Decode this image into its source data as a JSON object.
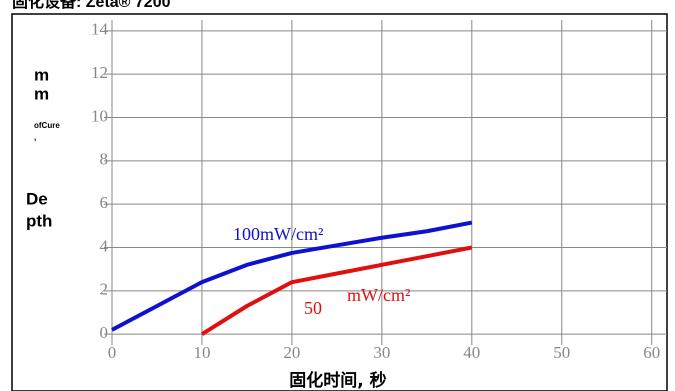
{
  "chart_data": {
    "type": "line",
    "title": "固化设备: Zeta® 7200",
    "y_label_parts": [
      "m",
      "m",
      "ofCure",
      ",",
      "De",
      "pth"
    ],
    "x_label": "固化时间, 秒",
    "x": [
      0,
      5,
      10,
      15,
      20,
      25,
      30,
      35,
      40
    ],
    "series": [
      {
        "name": "100mW/cm²",
        "color": "#1010d0",
        "values": [
          0.2,
          1.3,
          2.4,
          3.2,
          3.75,
          4.1,
          4.45,
          4.75,
          5.15
        ]
      },
      {
        "name": "50",
        "color": "#e01010",
        "values": [
          null,
          null,
          0,
          1.3,
          2.4,
          2.8,
          3.2,
          3.6,
          4.0
        ]
      }
    ],
    "annotations": [
      "mW/cm²"
    ],
    "xlim": [
      0,
      61.7
    ],
    "xticks": [
      0,
      10,
      20,
      30,
      40,
      50,
      60
    ],
    "ylim": [
      -0.5,
      14.5
    ],
    "yticks": [
      0,
      2,
      4,
      6,
      8,
      10,
      12,
      14
    ],
    "grid": true
  }
}
